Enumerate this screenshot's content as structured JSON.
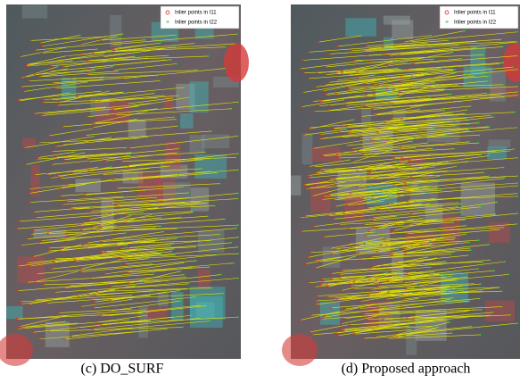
{
  "panels": [
    {
      "legend": [
        "Inlier points in I11",
        "Inlier points in I22"
      ],
      "caption": "(c) DO_SURF"
    },
    {
      "legend": [
        "Inlier points in I11",
        "Inlier points in I22"
      ],
      "caption": "(d) Proposed approach"
    }
  ]
}
